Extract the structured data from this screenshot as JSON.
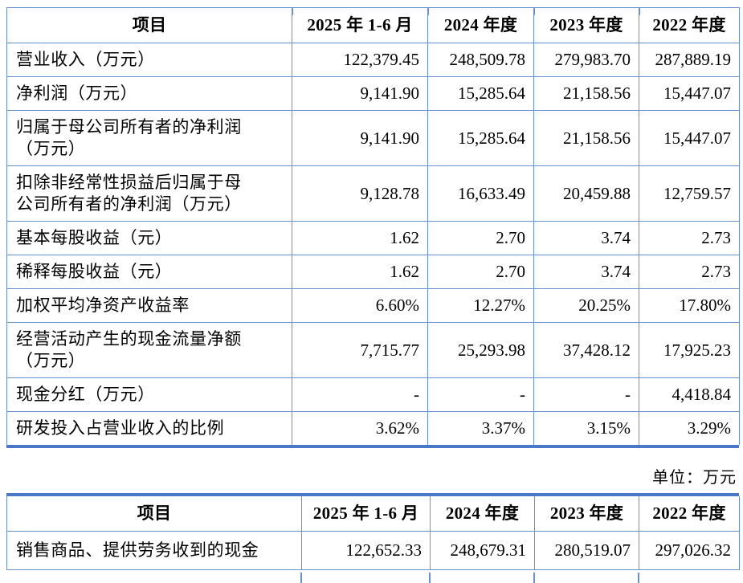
{
  "colors": {
    "grid_blue": "#6b90d2",
    "rule_blue": "#4a78c8",
    "text_black": "#000000",
    "page_bg": "#ffffff"
  },
  "unit_label": "单位：万元",
  "table1": {
    "columns": [
      "项目",
      "2025 年 1-6 月",
      "2024 年度",
      "2023 年度",
      "2022 年度"
    ],
    "rows": [
      {
        "label": "营业收入（万元）",
        "values": [
          "122,379.45",
          "248,509.78",
          "279,983.70",
          "287,889.19"
        ]
      },
      {
        "label": "净利润（万元）",
        "values": [
          "9,141.90",
          "15,285.64",
          "21,158.56",
          "15,447.07"
        ]
      },
      {
        "label": "归属于母公司所有者的净利润\n（万元）",
        "values": [
          "9,141.90",
          "15,285.64",
          "21,158.56",
          "15,447.07"
        ]
      },
      {
        "label": "扣除非经常性损益后归属于母\n公司所有者的净利润（万元）",
        "values": [
          "9,128.78",
          "16,633.49",
          "20,459.88",
          "12,759.57"
        ]
      },
      {
        "label": "基本每股收益（元）",
        "values": [
          "1.62",
          "2.70",
          "3.74",
          "2.73"
        ]
      },
      {
        "label": "稀释每股收益（元）",
        "values": [
          "1.62",
          "2.70",
          "3.74",
          "2.73"
        ]
      },
      {
        "label": "加权平均净资产收益率",
        "values": [
          "6.60%",
          "12.27%",
          "20.25%",
          "17.80%"
        ]
      },
      {
        "label": "经营活动产生的现金流量净额\n（万元）",
        "values": [
          "7,715.77",
          "25,293.98",
          "37,428.12",
          "17,925.23"
        ]
      },
      {
        "label": "现金分红（万元）",
        "values": [
          "-",
          "-",
          "-",
          "4,418.84"
        ]
      },
      {
        "label": "研发投入占营业收入的比例",
        "values": [
          "3.62%",
          "3.37%",
          "3.15%",
          "3.29%"
        ]
      }
    ]
  },
  "table2": {
    "columns": [
      "项目",
      "2025 年 1-6 月",
      "2024 年度",
      "2023 年度",
      "2022 年度"
    ],
    "rows": [
      {
        "label": "销售商品、提供劳务收到的现金",
        "values": [
          "122,652.33",
          "248,679.31",
          "280,519.07",
          "297,026.32"
        ]
      }
    ]
  }
}
